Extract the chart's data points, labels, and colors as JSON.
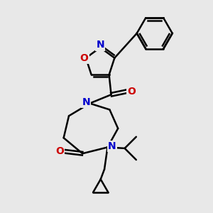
{
  "bg_color": "#e8e8e8",
  "bond_color": "#000000",
  "atom_colors": {
    "N": "#0000cc",
    "O": "#cc0000",
    "C": "#000000"
  },
  "bond_width": 1.8,
  "figsize": [
    3.0,
    3.0
  ],
  "dpi": 100
}
